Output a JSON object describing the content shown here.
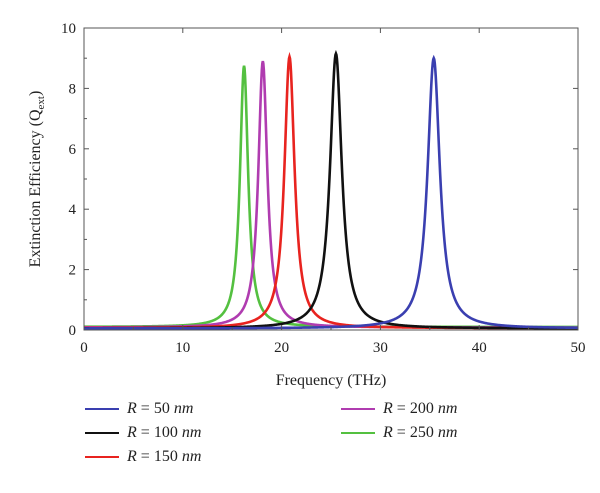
{
  "chart_data": {
    "type": "line",
    "title": "",
    "xlabel": "Frequency (THz)",
    "ylabel_main": "Extinction Efficiency (Q",
    "ylabel_sub": "ext",
    "ylabel_close": ")",
    "xlim": [
      0,
      50
    ],
    "ylim": [
      0,
      10
    ],
    "xticks": [
      "0",
      "10",
      "20",
      "30",
      "40",
      "50"
    ],
    "yticks": [
      "0",
      "2",
      "4",
      "6",
      "8",
      "10"
    ],
    "grid": false,
    "legend_position": "bottom",
    "series": [
      {
        "name": "R = 50 nm",
        "var": "R",
        "eq": " = ",
        "val": "50",
        "unit": "nm",
        "color": "#3a3fb0",
        "peak_x": 35.4,
        "peak_y": 9.0,
        "width": 0.75,
        "baseline": 0.05
      },
      {
        "name": "R = 100 nm",
        "var": "R",
        "eq": " = ",
        "val": "100",
        "unit": "nm",
        "color": "#111111",
        "peak_x": 25.5,
        "peak_y": 9.15,
        "width": 0.72,
        "baseline": 0.05
      },
      {
        "name": "R = 150 nm",
        "var": "R",
        "eq": " = ",
        "val": "150",
        "unit": "nm",
        "color": "#e8231f",
        "peak_x": 20.8,
        "peak_y": 9.05,
        "width": 0.62,
        "baseline": 0.06
      },
      {
        "name": "R = 200 nm",
        "var": "R",
        "eq": " = ",
        "val": "200",
        "unit": "nm",
        "color": "#b03cb0",
        "peak_x": 18.1,
        "peak_y": 8.9,
        "width": 0.55,
        "baseline": 0.08
      },
      {
        "name": "R = 250 nm",
        "var": "R",
        "eq": " = ",
        "val": "250",
        "unit": "nm",
        "color": "#54c040",
        "peak_x": 16.2,
        "peak_y": 8.75,
        "width": 0.5,
        "baseline": 0.1
      }
    ]
  }
}
